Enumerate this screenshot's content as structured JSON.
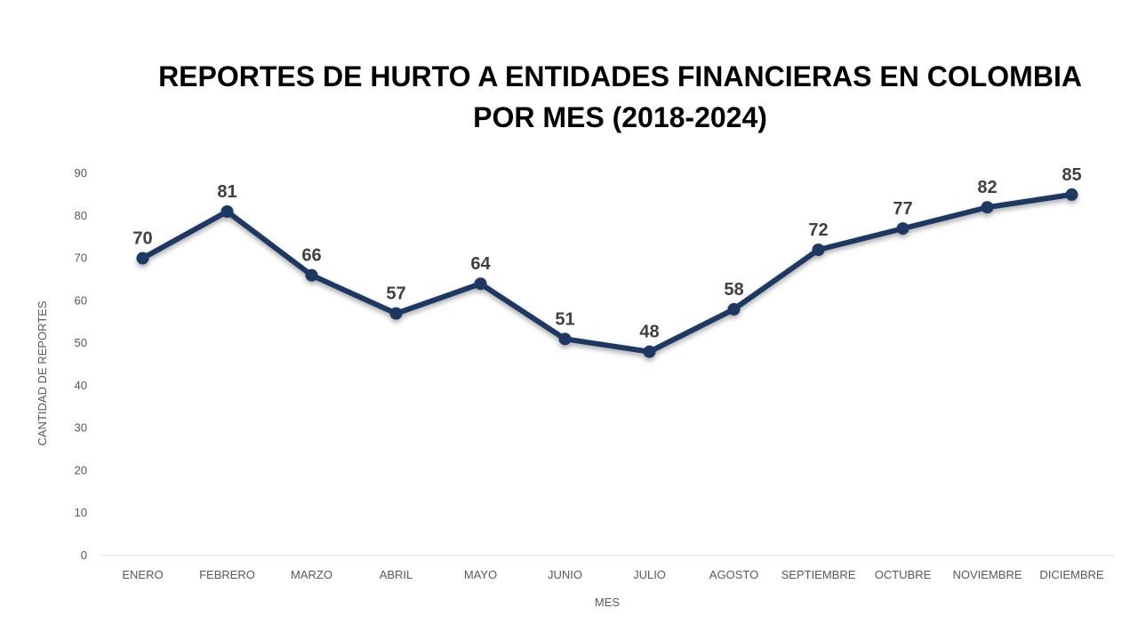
{
  "chart_data": {
    "type": "line",
    "title_lines": [
      "REPORTES DE HURTO A ENTIDADES FINANCIERAS EN COLOMBIA",
      "POR MES (2018-2024)"
    ],
    "xlabel": "MES",
    "ylabel": "CANTIDAD DE REPORTES",
    "categories": [
      "ENERO",
      "FEBRERO",
      "MARZO",
      "ABRIL",
      "MAYO",
      "JUNIO",
      "JULIO",
      "AGOSTO",
      "SEPTIEMBRE",
      "OCTUBRE",
      "NOVIEMBRE",
      "DICIEMBRE"
    ],
    "values": [
      70,
      81,
      66,
      57,
      64,
      51,
      48,
      58,
      72,
      77,
      82,
      85
    ],
    "ylim": [
      0,
      90
    ],
    "yticks": [
      0,
      10,
      20,
      30,
      40,
      50,
      60,
      70,
      80,
      90
    ],
    "grid": false,
    "data_labels": true,
    "line_color": "#1F3864"
  }
}
